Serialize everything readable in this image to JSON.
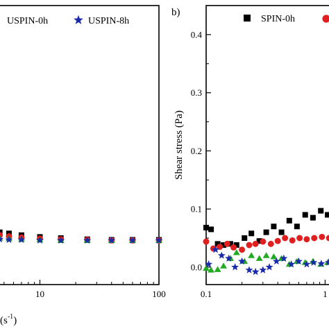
{
  "chart_data": [
    {
      "panel": "a",
      "type": "scatter",
      "title": "",
      "xlabel_visible": "(s",
      "xlabel_exponent": "-1",
      "xlabel_close": ")",
      "ylabel": "",
      "x_scale": "log",
      "xlim": [
        4.5,
        100
      ],
      "ylim": [
        -0.03,
        0.45
      ],
      "x_tick_labels": [
        {
          "value": 10,
          "label": "10"
        },
        {
          "value": 100,
          "label": "100"
        }
      ],
      "legend_placement": "top",
      "series": [
        {
          "name": "USPIN-0h",
          "marker": "square",
          "color": "#000000",
          "x": [
            4.6,
            5.5,
            7,
            10,
            15,
            25,
            40,
            60,
            100
          ],
          "y": [
            0.06,
            0.058,
            0.055,
            0.052,
            0.05,
            0.048,
            0.047,
            0.047,
            0.047
          ]
        },
        {
          "name": "",
          "marker": "circle",
          "color": "#e02020",
          "x": [
            4.6,
            5.5,
            7,
            10,
            15,
            25,
            40,
            60,
            100
          ],
          "y": [
            0.055,
            0.053,
            0.051,
            0.049,
            0.048,
            0.047,
            0.046,
            0.046,
            0.046
          ]
        },
        {
          "name": "",
          "marker": "triangle",
          "color": "#22aa22",
          "x": [
            4.6,
            5.5,
            7,
            10,
            15,
            25,
            40,
            60,
            100
          ],
          "y": [
            0.05,
            0.049,
            0.048,
            0.047,
            0.046,
            0.046,
            0.046,
            0.046,
            0.046
          ]
        },
        {
          "name": "USPIN-8h",
          "marker": "star",
          "color": "#1a2aa8",
          "x": [
            4.6,
            5.5,
            7,
            10,
            15,
            25,
            40,
            60,
            100
          ],
          "y": [
            0.048,
            0.047,
            0.047,
            0.046,
            0.046,
            0.046,
            0.046,
            0.046,
            0.046
          ]
        }
      ]
    },
    {
      "panel": "b",
      "type": "scatter",
      "title": "",
      "xlabel": "",
      "ylabel": "Shear stress (Pa)",
      "x_scale": "log",
      "xlim": [
        0.1,
        1.2
      ],
      "ylim": [
        -0.03,
        0.45
      ],
      "x_tick_labels": [
        {
          "value": 0.1,
          "label": "0.1"
        },
        {
          "value": 1,
          "label": "1"
        }
      ],
      "y_tick_labels": [
        {
          "value": 0.0,
          "label": "0.0"
        },
        {
          "value": 0.1,
          "label": "0.1"
        },
        {
          "value": 0.2,
          "label": "0.2"
        },
        {
          "value": 0.3,
          "label": "0.3"
        },
        {
          "value": 0.4,
          "label": "0.4"
        }
      ],
      "legend_placement": "top-right",
      "series": [
        {
          "name": "SPIN-0h",
          "marker": "square",
          "color": "#000000",
          "x": [
            0.1,
            0.11,
            0.125,
            0.14,
            0.16,
            0.18,
            0.21,
            0.24,
            0.28,
            0.32,
            0.37,
            0.43,
            0.5,
            0.58,
            0.68,
            0.79,
            0.92,
            1.05
          ],
          "y": [
            0.068,
            0.065,
            0.04,
            0.038,
            0.04,
            0.038,
            0.05,
            0.058,
            0.045,
            0.06,
            0.07,
            0.06,
            0.08,
            0.07,
            0.09,
            0.085,
            0.097,
            0.09
          ]
        },
        {
          "name": "",
          "marker": "circle",
          "color": "#e02020",
          "x": [
            0.1,
            0.115,
            0.13,
            0.15,
            0.17,
            0.2,
            0.23,
            0.26,
            0.3,
            0.35,
            0.4,
            0.46,
            0.53,
            0.61,
            0.7,
            0.81,
            0.94,
            1.08
          ],
          "y": [
            0.044,
            0.032,
            0.035,
            0.04,
            0.034,
            0.03,
            0.038,
            0.04,
            0.044,
            0.04,
            0.045,
            0.05,
            0.046,
            0.05,
            0.048,
            0.05,
            0.052,
            0.05
          ]
        },
        {
          "name": "",
          "marker": "triangle",
          "color": "#22aa22",
          "x": [
            0.1,
            0.11,
            0.125,
            0.14,
            0.16,
            0.18,
            0.21,
            0.24,
            0.28,
            0.32,
            0.37,
            0.43,
            0.5,
            0.58,
            0.68,
            0.79,
            0.92,
            1.05
          ],
          "y": [
            -0.002,
            -0.005,
            -0.004,
            0.002,
            0.015,
            0.025,
            0.01,
            0.02,
            0.015,
            0.02,
            0.018,
            0.015,
            0.005,
            0.01,
            0.008,
            0.01,
            0.005,
            0.008
          ]
        },
        {
          "name": "",
          "marker": "star",
          "color": "#1a2aa8",
          "x": [
            0.105,
            0.12,
            0.135,
            0.155,
            0.175,
            0.2,
            0.23,
            0.26,
            0.3,
            0.34,
            0.39,
            0.45,
            0.52,
            0.6,
            0.7,
            0.8,
            0.93,
            1.07
          ],
          "y": [
            0.005,
            0.03,
            0.02,
            0.015,
            0.0,
            0.01,
            -0.005,
            -0.008,
            -0.005,
            0.0,
            0.01,
            0.015,
            0.005,
            0.01,
            0.005,
            0.008,
            0.006,
            0.008
          ]
        }
      ],
      "legend_circle_color": "#e02020"
    }
  ],
  "panel_b_label": "b)"
}
